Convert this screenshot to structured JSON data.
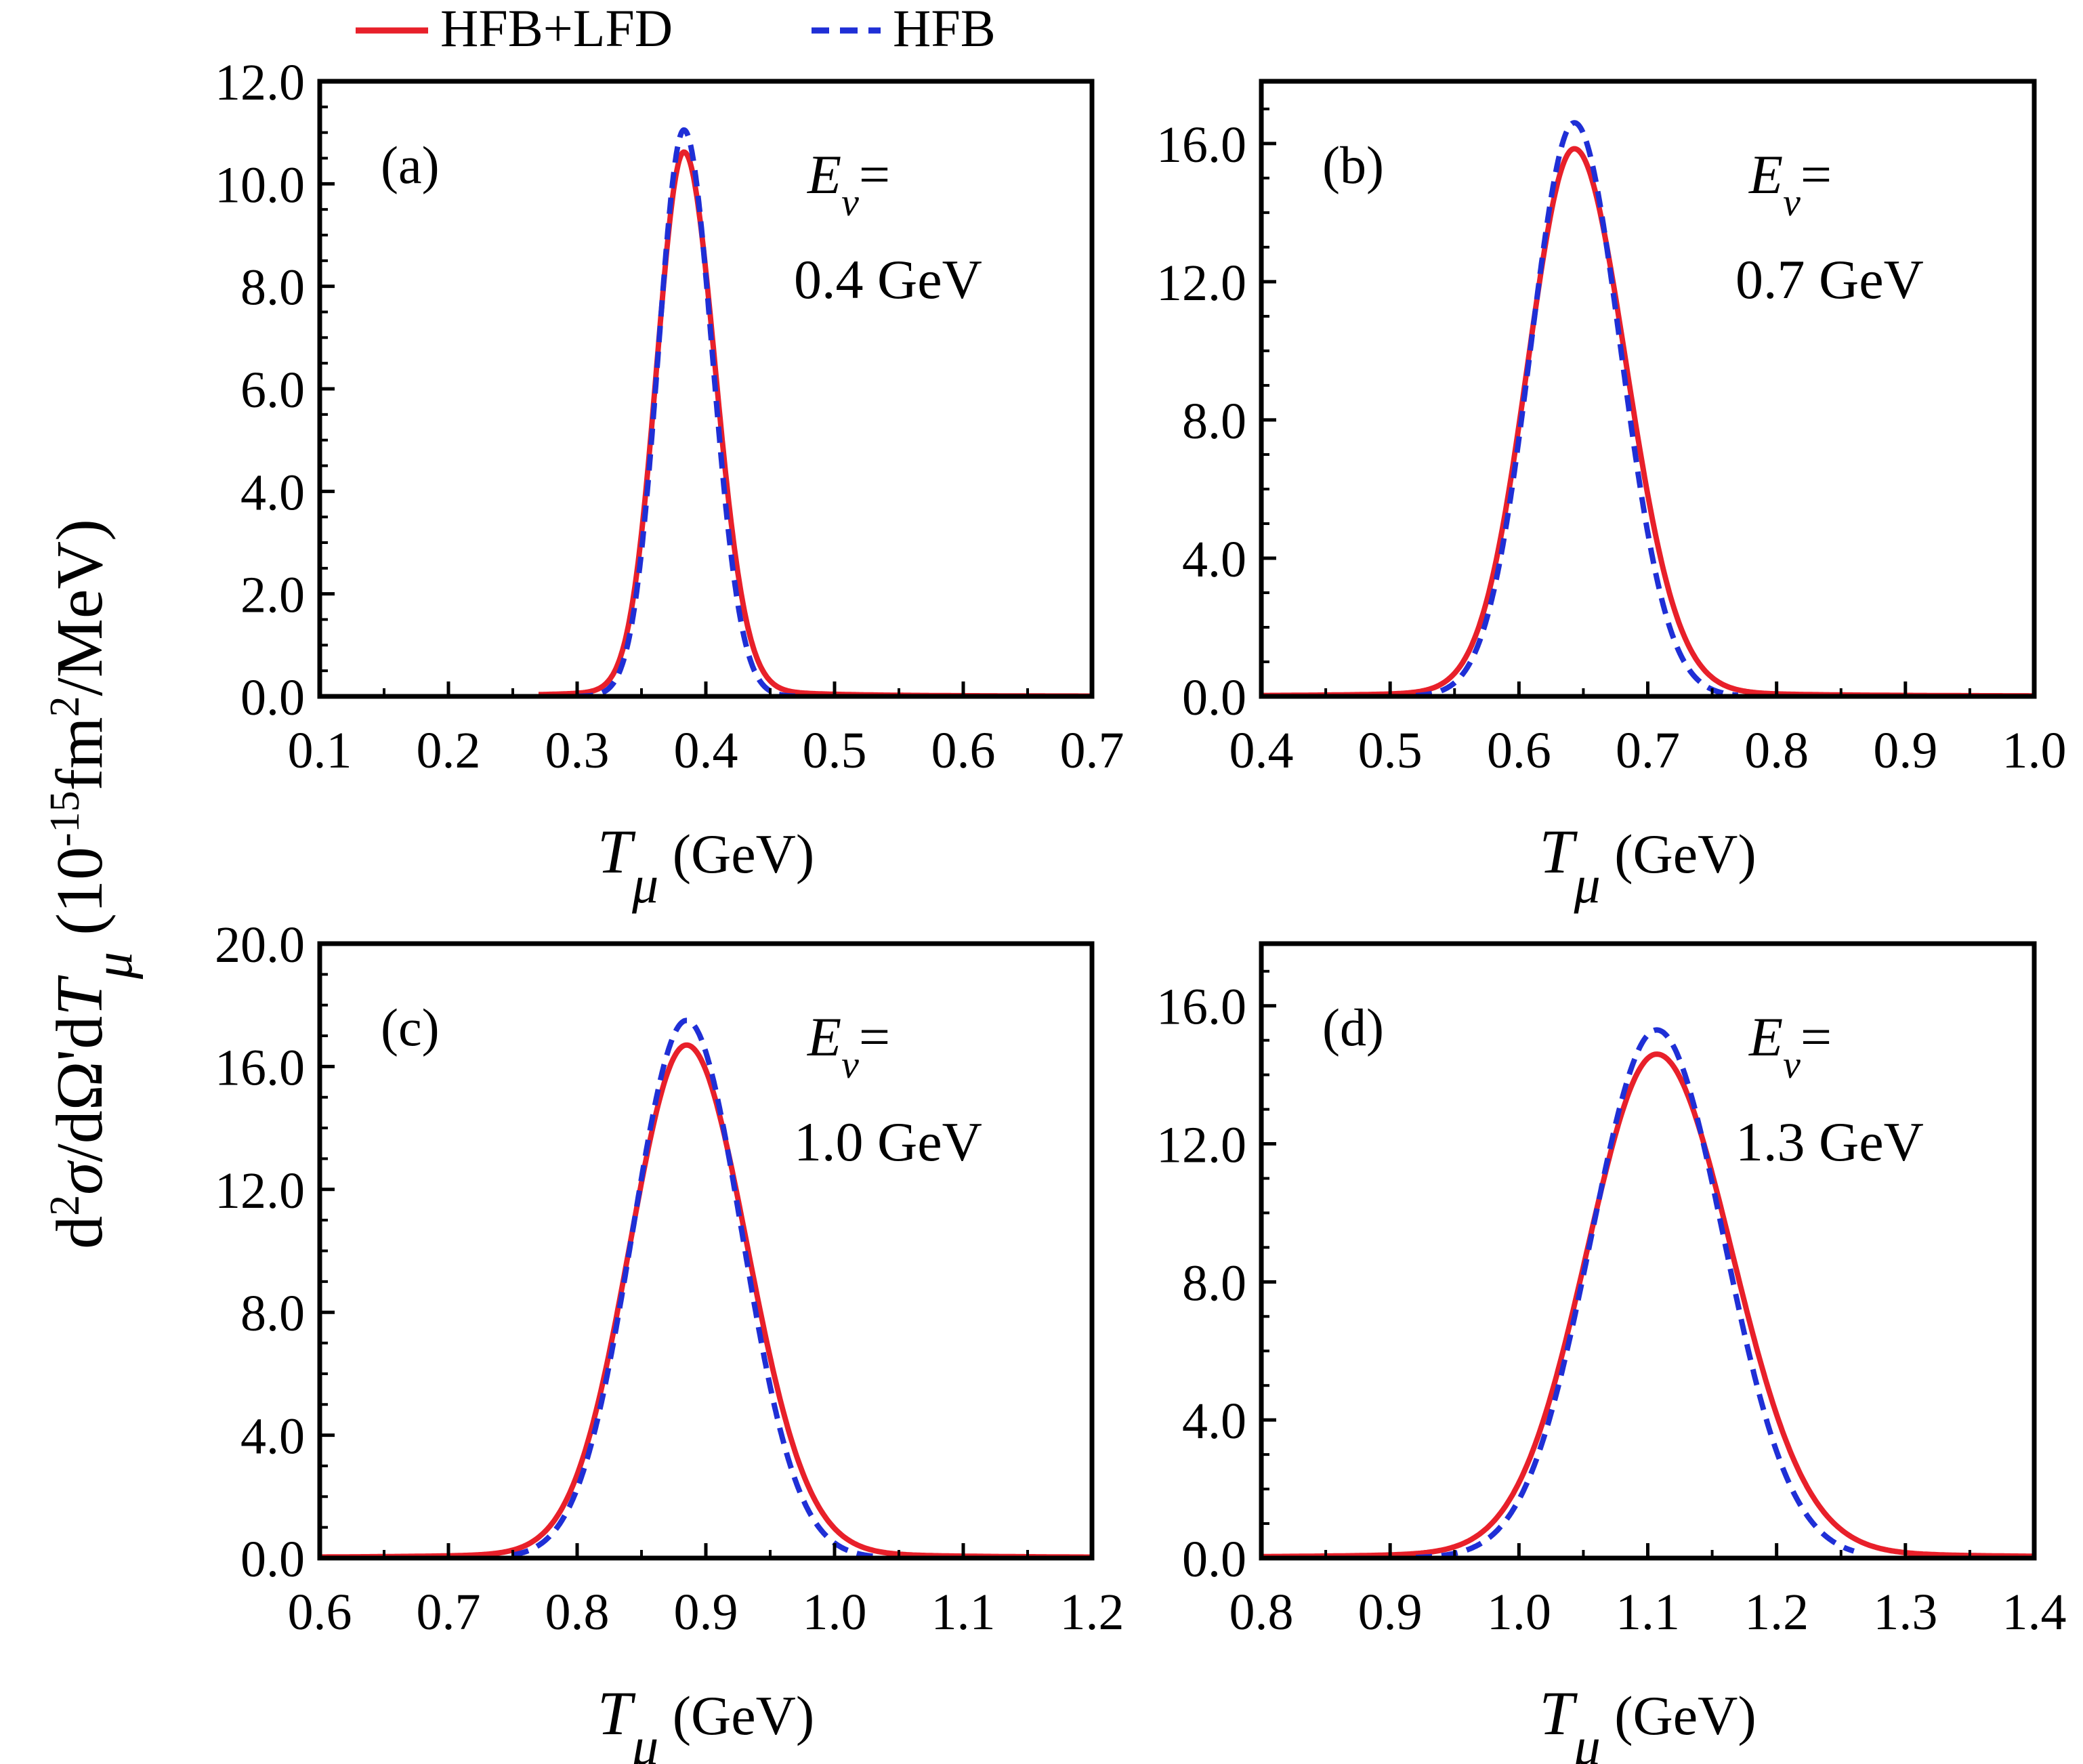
{
  "legend": {
    "placement": "top-center",
    "entries": [
      {
        "label": "HFB+LFD",
        "color": "#e8202a",
        "style": "solid"
      },
      {
        "label": "HFB",
        "color": "#1f2fd6",
        "style": "dashed"
      }
    ]
  },
  "ylabel": {
    "prefix": "d",
    "sup": "2",
    "sigma": "σ",
    "mid": "/dΩ'd",
    "T": "T",
    "mu": "μ",
    "open": " (10",
    "exp": "-15",
    "fm": "fm",
    "fm_exp": "2",
    "rest": "/MeV)"
  },
  "energy_symbol": "E",
  "energy_sub": "v",
  "energy_eq": "=",
  "xlabel": {
    "T": "T",
    "mu": "μ",
    "unit": " (GeV)"
  },
  "chart_data": [
    {
      "type": "line",
      "panel_label": "(a)",
      "energy_value": "0.4 GeV",
      "xlabel": "Tμ (GeV)",
      "ylabel": "d2σ/dΩ'dTμ (10-15fm2/MeV)",
      "xlim": [
        0.1,
        0.7
      ],
      "ylim": [
        0,
        12
      ],
      "xticks": [
        "0.1",
        "0.2",
        "0.3",
        "0.4",
        "0.5",
        "0.6",
        "0.7"
      ],
      "yticks": [
        "0.0",
        "2.0",
        "4.0",
        "6.0",
        "8.0",
        "10.0",
        "12.0"
      ],
      "series": [
        {
          "name": "HFB+LFD",
          "color": "#e8202a",
          "style": "solid",
          "peak_x": 0.383,
          "peak_y": 10.4,
          "sigma_left": 0.021,
          "sigma_right": 0.024,
          "tail": 0.22,
          "xmin": 0.27,
          "xmax": 0.7
        },
        {
          "name": "HFB",
          "color": "#1f2fd6",
          "style": "dashed",
          "peak_x": 0.383,
          "peak_y": 11.05,
          "sigma_left": 0.02,
          "sigma_right": 0.022,
          "tail": 0.0,
          "xmin": 0.3,
          "xmax": 0.47
        }
      ]
    },
    {
      "type": "line",
      "panel_label": "(b)",
      "energy_value": "0.7 GeV",
      "xlabel": "Tμ (GeV)",
      "ylabel": "d2σ/dΩ'dTμ (10-15fm2/MeV)",
      "xlim": [
        0.4,
        1.0
      ],
      "ylim": [
        0,
        17.8
      ],
      "xticks": [
        "0.4",
        "0.5",
        "0.6",
        "0.7",
        "0.8",
        "0.9",
        "1.0"
      ],
      "yticks": [
        "0.0",
        "4.0",
        "8.0",
        "12.0",
        "16.0"
      ],
      "series": [
        {
          "name": "HFB+LFD",
          "color": "#e8202a",
          "style": "solid",
          "peak_x": 0.643,
          "peak_y": 15.6,
          "sigma_left": 0.036,
          "sigma_right": 0.04,
          "tail": 0.25,
          "xmin": 0.4,
          "xmax": 1.0
        },
        {
          "name": "HFB",
          "color": "#1f2fd6",
          "style": "dashed",
          "peak_x": 0.643,
          "peak_y": 16.6,
          "sigma_left": 0.034,
          "sigma_right": 0.036,
          "tail": 0.0,
          "xmin": 0.52,
          "xmax": 0.77
        }
      ]
    },
    {
      "type": "line",
      "panel_label": "(c)",
      "energy_value": "1.0 GeV",
      "xlabel": "Tμ (GeV)",
      "ylabel": "d2σ/dΩ'dTμ (10-15fm2/MeV)",
      "xlim": [
        0.6,
        1.2
      ],
      "ylim": [
        0,
        20
      ],
      "xticks": [
        "0.6",
        "0.7",
        "0.8",
        "0.9",
        "1.0",
        "1.1",
        "1.2"
      ],
      "yticks": [
        "0.0",
        "4.0",
        "8.0",
        "12.0",
        "16.0",
        "20.0"
      ],
      "series": [
        {
          "name": "HFB+LFD",
          "color": "#e8202a",
          "style": "solid",
          "peak_x": 0.885,
          "peak_y": 16.4,
          "sigma_left": 0.044,
          "sigma_right": 0.047,
          "tail": 0.3,
          "xmin": 0.6,
          "xmax": 1.2
        },
        {
          "name": "HFB",
          "color": "#1f2fd6",
          "style": "dashed",
          "peak_x": 0.885,
          "peak_y": 17.5,
          "sigma_left": 0.042,
          "sigma_right": 0.043,
          "tail": 0.0,
          "xmin": 0.75,
          "xmax": 1.03
        }
      ]
    },
    {
      "type": "line",
      "panel_label": "(d)",
      "energy_value": "1.3 GeV",
      "xlabel": "Tμ (GeV)",
      "ylabel": "d2σ/dΩ'dTμ (10-15fm2/MeV)",
      "xlim": [
        0.8,
        1.4
      ],
      "ylim": [
        0,
        17.8
      ],
      "xticks": [
        "0.8",
        "0.9",
        "1.0",
        "1.1",
        "1.2",
        "1.3",
        "1.4"
      ],
      "yticks": [
        "0.0",
        "4.0",
        "8.0",
        "12.0",
        "16.0"
      ],
      "series": [
        {
          "name": "HFB+LFD",
          "color": "#e8202a",
          "style": "solid",
          "peak_x": 1.107,
          "peak_y": 14.3,
          "sigma_left": 0.054,
          "sigma_right": 0.058,
          "tail": 0.3,
          "xmin": 0.8,
          "xmax": 1.4
        },
        {
          "name": "HFB",
          "color": "#1f2fd6",
          "style": "dashed",
          "peak_x": 1.107,
          "peak_y": 15.3,
          "sigma_left": 0.051,
          "sigma_right": 0.052,
          "tail": 0.0,
          "xmin": 0.92,
          "xmax": 1.26
        }
      ]
    }
  ]
}
